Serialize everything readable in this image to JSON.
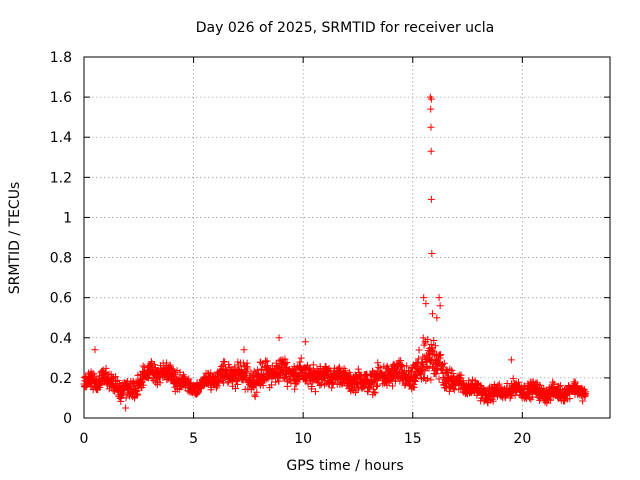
{
  "chart_data": {
    "type": "scatter",
    "title": "Day 026 of 2025, SRMTID for receiver ucla",
    "xlabel": "GPS time / hours",
    "ylabel": "SRMTID / TECUs",
    "xlim": [
      0,
      24
    ],
    "ylim": [
      0,
      1.8
    ],
    "x_ticks": [
      0,
      5,
      10,
      15,
      20
    ],
    "x_tick_labels": [
      "0",
      "5",
      "10",
      "15",
      "20"
    ],
    "y_ticks": [
      0,
      0.2,
      0.4,
      0.6,
      0.8,
      1.0,
      1.2,
      1.4,
      1.6,
      1.8
    ],
    "y_tick_labels": [
      "0",
      "0.2",
      "0.4",
      "0.6",
      "0.8",
      "1",
      "1.2",
      "1.4",
      "1.6",
      "1.8"
    ],
    "grid": true,
    "marker": "+",
    "color": "#ff0000",
    "baseline_profile": {
      "hours": [
        0,
        1,
        2,
        3,
        4,
        5,
        6,
        7,
        8,
        9,
        10,
        11,
        12,
        13,
        14,
        15,
        15.5,
        16,
        16.5,
        17,
        18,
        19,
        20,
        21,
        22,
        22.9
      ],
      "median": [
        0.17,
        0.18,
        0.14,
        0.22,
        0.21,
        0.16,
        0.19,
        0.22,
        0.21,
        0.22,
        0.23,
        0.21,
        0.18,
        0.2,
        0.21,
        0.19,
        0.28,
        0.32,
        0.2,
        0.16,
        0.14,
        0.13,
        0.13,
        0.14,
        0.13,
        0.12
      ],
      "spread": [
        0.05,
        0.06,
        0.06,
        0.07,
        0.06,
        0.05,
        0.06,
        0.08,
        0.08,
        0.08,
        0.08,
        0.07,
        0.06,
        0.07,
        0.08,
        0.08,
        0.15,
        0.16,
        0.09,
        0.06,
        0.05,
        0.05,
        0.05,
        0.05,
        0.05,
        0.04
      ]
    },
    "outliers": [
      {
        "x": 15.8,
        "y": 1.6
      },
      {
        "x": 15.85,
        "y": 1.59
      },
      {
        "x": 15.82,
        "y": 1.54
      },
      {
        "x": 15.83,
        "y": 1.45
      },
      {
        "x": 15.84,
        "y": 1.33
      },
      {
        "x": 15.85,
        "y": 1.09
      },
      {
        "x": 15.87,
        "y": 0.82
      },
      {
        "x": 15.5,
        "y": 0.6
      },
      {
        "x": 15.6,
        "y": 0.57
      },
      {
        "x": 16.2,
        "y": 0.6
      },
      {
        "x": 16.25,
        "y": 0.56
      },
      {
        "x": 15.9,
        "y": 0.52
      },
      {
        "x": 16.1,
        "y": 0.5
      },
      {
        "x": 8.9,
        "y": 0.4
      },
      {
        "x": 10.1,
        "y": 0.38
      },
      {
        "x": 0.5,
        "y": 0.34
      },
      {
        "x": 7.3,
        "y": 0.34
      },
      {
        "x": 19.5,
        "y": 0.29
      },
      {
        "x": 1.9,
        "y": 0.05
      }
    ]
  }
}
